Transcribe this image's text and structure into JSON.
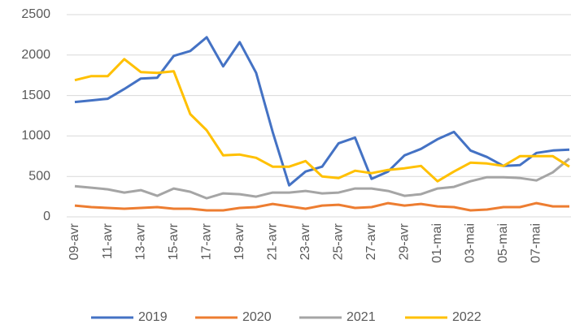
{
  "chart_data": {
    "type": "line",
    "categories": [
      "09-avr",
      null,
      "11-avr",
      null,
      "13-avr",
      null,
      "15-avr",
      null,
      "17-avr",
      null,
      "19-avr",
      null,
      "21-avr",
      null,
      "23-avr",
      null,
      "25-avr",
      null,
      "27-avr",
      null,
      "29-avr",
      null,
      "01-mai",
      null,
      "03-mai",
      null,
      "05-mai",
      null,
      "07-mai",
      null,
      null
    ],
    "series": [
      {
        "name": "2019",
        "color": "#4472c4",
        "values": [
          1420,
          1440,
          1460,
          1580,
          1710,
          1720,
          1990,
          2050,
          2220,
          1860,
          2160,
          1780,
          1050,
          390,
          560,
          620,
          910,
          980,
          470,
          560,
          760,
          840,
          960,
          1050,
          820,
          740,
          630,
          640,
          790,
          820,
          830
        ]
      },
      {
        "name": "2020",
        "color": "#ed7d31",
        "values": [
          140,
          120,
          110,
          100,
          110,
          120,
          100,
          100,
          80,
          80,
          110,
          120,
          160,
          130,
          100,
          140,
          150,
          110,
          120,
          170,
          140,
          160,
          130,
          120,
          80,
          90,
          120,
          120,
          170,
          130,
          130
        ]
      },
      {
        "name": "2021",
        "color": "#a5a5a5",
        "values": [
          380,
          360,
          340,
          300,
          330,
          260,
          350,
          310,
          230,
          290,
          280,
          250,
          300,
          300,
          320,
          290,
          300,
          350,
          350,
          320,
          260,
          280,
          350,
          370,
          440,
          490,
          490,
          480,
          450,
          550,
          720
        ]
      },
      {
        "name": "2022",
        "color": "#ffc000",
        "values": [
          1690,
          1740,
          1740,
          1950,
          1790,
          1780,
          1800,
          1270,
          1070,
          760,
          770,
          730,
          620,
          620,
          690,
          500,
          480,
          570,
          540,
          580,
          600,
          630,
          440,
          560,
          670,
          660,
          630,
          750,
          750,
          750,
          620
        ]
      }
    ],
    "ylim": [
      0,
      2500
    ],
    "yticks": [
      0,
      500,
      1000,
      1500,
      2000,
      2500
    ],
    "grid": true,
    "legend": "bottom"
  }
}
